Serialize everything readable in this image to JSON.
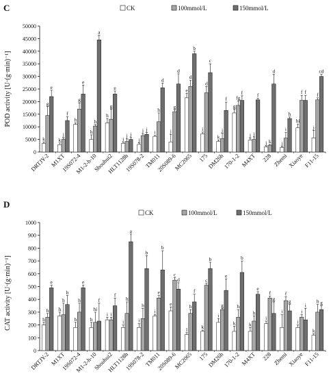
{
  "colors": {
    "ck": "#ffffff",
    "mid": "#a6a6a6",
    "high": "#6e6e6e",
    "axis": "#111111"
  },
  "panels": [
    {
      "panel_label": "C",
      "chart_data": {
        "type": "bar",
        "ylabel": "POD activity [U·(g·min)⁻¹]",
        "ylim": [
          0,
          50000
        ],
        "yticks": [
          0,
          5000,
          10000,
          15000,
          20000,
          25000,
          30000,
          35000,
          40000,
          45000,
          50000
        ],
        "ytick_labels": [
          "0",
          "5000",
          "10000",
          "15000",
          "20000",
          "25000",
          "30000",
          "35000",
          "40000",
          "45000",
          "50000"
        ],
        "categories": [
          "DRTJY-2",
          "M1XT",
          "19S072-4",
          "M1-2-h-10",
          "Shouhui2",
          "HLT1128h",
          "19S078-2",
          "TM011",
          "20S089-6",
          "MC2065",
          "175",
          "DM26h",
          "170-1-2",
          "M4XT",
          "228",
          "Zhemi",
          "Xiaoye",
          "F11-15"
        ],
        "legend_position": "top",
        "series": [
          {
            "name": "CK",
            "values": [
              3400,
              2900,
              11000,
              5000,
              11500,
              3400,
              3000,
              6200,
              4000,
              21500,
              7200,
              4200,
              15500,
              4700,
              2000,
              1800,
              9600,
              5600
            ],
            "errors": [
              600,
              700,
              500,
              1800,
              1800,
              500,
              600,
              400,
              3000,
              1800,
              700,
              600,
              1500,
              800,
              500,
              400,
              1500,
              3000
            ],
            "letters": [
              "k",
              "k",
              "h",
              "h",
              "h",
              "j",
              "j",
              "i",
              "j",
              "e",
              "i",
              "k",
              "g",
              "j",
              "j",
              "j",
              "hi",
              "j"
            ]
          },
          {
            "name": "100mmol/L",
            "values": [
              14500,
              5000,
              17000,
              10300,
              13000,
              4200,
              6500,
              12000,
              16000,
              26000,
              23500,
              5300,
              18500,
              5000,
              2700,
              5500,
              20500,
              20700
            ],
            "errors": [
              3500,
              700,
              2500,
              600,
              4000,
              1000,
              800,
              3500,
              700,
              2500,
              2500,
              2200,
              1800,
              1000,
              300,
              2200,
              2000,
              800
            ],
            "letters": [
              "g",
              "j",
              "g",
              "h",
              "g",
              "j",
              "j",
              "h",
              "g",
              "d",
              "d",
              "j",
              "fg",
              "j",
              "k",
              "i",
              "f",
              "f"
            ]
          },
          {
            "name": "150mmol/L",
            "values": [
              22000,
              12500,
              23000,
              0,
              23000,
              5000,
              7000,
              25500,
              27000,
              39000,
              31500,
              16500,
              20500,
              20700,
              27000,
              13300,
              20500,
              30000
            ],
            "errors": [
              2500,
              1500,
              3500,
              0,
              1200,
              800,
              700,
              1800,
              4000,
              1000,
              3500,
              3300,
              1800,
              600,
              3800,
              600,
              2000,
              800
            ],
            "letters": [
              "e",
              "f",
              "e",
              "",
              "e",
              "j",
              "j",
              "d",
              "d",
              "b",
              "c",
              "f",
              "f",
              "f",
              "d",
              "h",
              "f",
              "cd"
            ]
          }
        ],
        "special": {
          "category": "M1-2-h-10",
          "series": "150mmol/L",
          "value": 44500,
          "error": 1800,
          "letter": "a"
        }
      }
    },
    {
      "panel_label": "D",
      "chart_data": {
        "type": "bar",
        "ylabel": "CAT activity [U·(g·min)⁻¹]",
        "ylim": [
          0,
          1000
        ],
        "yticks": [
          0,
          100,
          200,
          300,
          400,
          500,
          600,
          700,
          800,
          900,
          1000
        ],
        "ytick_labels": [
          "0",
          "100",
          "200",
          "300",
          "400",
          "500",
          "600",
          "700",
          "800",
          "900",
          "1000"
        ],
        "categories": [
          "DRTJY-2",
          "M1XT",
          "19S072-4",
          "M1-2-h-10",
          "Shouhui2",
          "HLT1128h",
          "19S078-2",
          "TM011",
          "20S089-6",
          "MC2065",
          "175",
          "DM26h",
          "170-1-2",
          "M4XT",
          "228",
          "Zhemi",
          "Xiaoye",
          "F11-15"
        ],
        "legend_position": "top",
        "series": [
          {
            "name": "CK",
            "values": [
              200,
              270,
              180,
              180,
              240,
              180,
              180,
              270,
              310,
              125,
              150,
              220,
              150,
              150,
              210,
              180,
              180,
              120
            ],
            "errors": [
              20,
              30,
              40,
              40,
              20,
              20,
              30,
              10,
              30,
              15,
              10,
              30,
              40,
              30,
              20,
              100,
              20,
              10
            ],
            "letters": [
              "h",
              "h",
              "h",
              "h",
              "i",
              "i",
              "i",
              "i",
              "e",
              "l",
              "k",
              "i",
              "k",
              "k",
              "i",
              "i",
              "i",
              "k"
            ]
          },
          {
            "name": "100mmol/L",
            "values": [
              260,
              280,
              300,
              220,
              240,
              290,
              250,
              410,
              550,
              290,
              510,
              320,
              260,
              230,
              410,
              390,
              260,
              300
            ],
            "errors": [
              30,
              90,
              70,
              80,
              20,
              90,
              80,
              20,
              20,
              30,
              15,
              10,
              60,
              40,
              15,
              30,
              20,
              60
            ],
            "letters": [
              "h",
              "h",
              "h",
              "hi",
              "i",
              "h",
              "h",
              "e",
              "c",
              "h",
              "c",
              "g",
              "h",
              "h",
              "f",
              "f",
              "i",
              "h"
            ]
          },
          {
            "name": "150mmol/L",
            "values": [
              490,
              360,
              490,
              230,
              350,
              850,
              640,
              630,
              480,
              380,
              640,
              470,
              610,
              440,
              290,
              310,
              240,
              320
            ],
            "errors": [
              20,
              70,
              20,
              140,
              60,
              60,
              100,
              150,
              50,
              60,
              50,
              90,
              90,
              20,
              90,
              50,
              90,
              30
            ],
            "letters": [
              "e",
              "h",
              "e",
              "f",
              "f",
              "a",
              "b",
              "b",
              "d",
              "f",
              "b",
              "e",
              "b",
              "e",
              "g",
              "g",
              "i",
              "g"
            ]
          }
        ]
      }
    }
  ]
}
